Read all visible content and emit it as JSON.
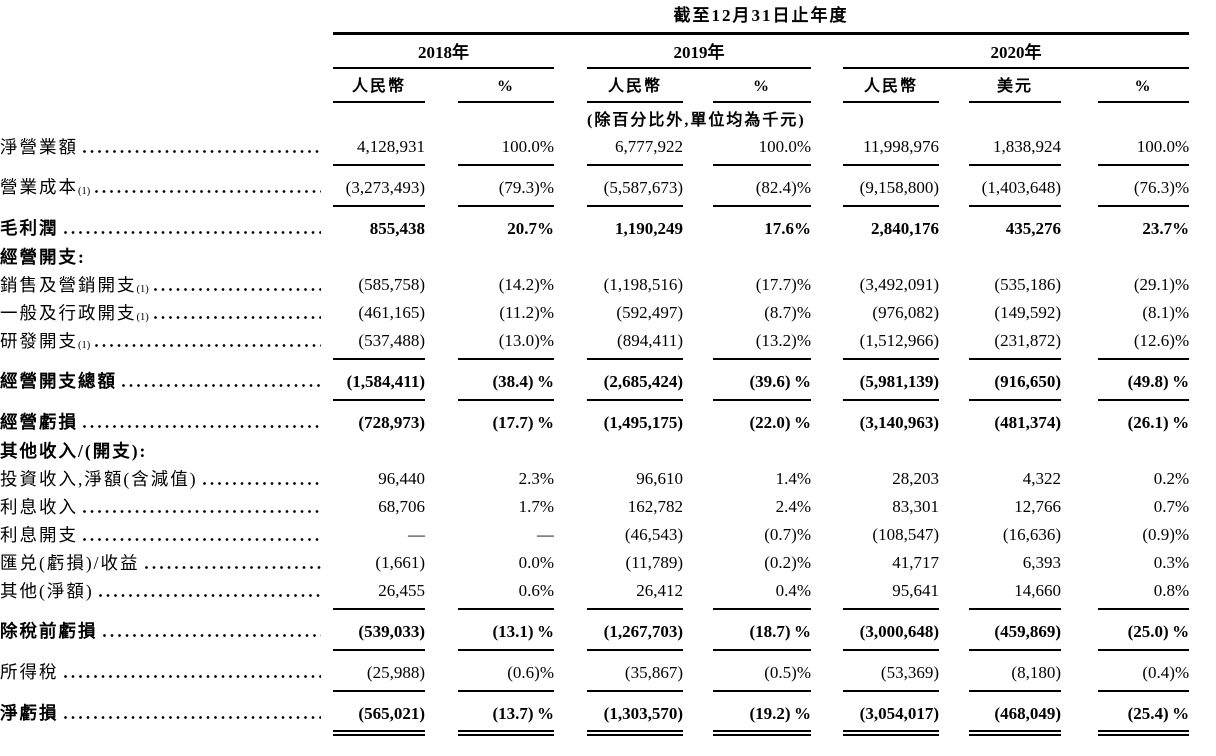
{
  "table": {
    "title": "截至12月31日止年度",
    "unit_note": "(除百分比外,單位均為千元)",
    "year_groups": [
      {
        "label": "2018年",
        "columns": [
          "人民幣",
          "%"
        ]
      },
      {
        "label": "2019年",
        "columns": [
          "人民幣",
          "%"
        ]
      },
      {
        "label": "2020年",
        "columns": [
          "人民幣",
          "美元",
          "%"
        ]
      }
    ],
    "rows": [
      {
        "label": "淨營業額",
        "sup": "",
        "bold": false,
        "leader": true,
        "rule": "single",
        "gap_above": false,
        "values": [
          "4,128,931",
          "100.0%",
          "6,777,922",
          "100.0%",
          "11,998,976",
          "1,838,924",
          "100.0%"
        ]
      },
      {
        "label": "營業成本",
        "sup": "(1)",
        "bold": false,
        "leader": true,
        "rule": "single",
        "gap_above": true,
        "values": [
          "(3,273,493)",
          "(79.3)%",
          "(5,587,673)",
          "(82.4)%",
          "(9,158,800)",
          "(1,403,648)",
          "(76.3)%"
        ]
      },
      {
        "label": "毛利潤",
        "sup": "",
        "bold": true,
        "leader": true,
        "rule": "none",
        "gap_above": true,
        "values": [
          "855,438",
          "20.7%",
          "1,190,249",
          "17.6%",
          "2,840,176",
          "435,276",
          "23.7%"
        ]
      },
      {
        "label": "經營開支:",
        "sup": "",
        "bold": true,
        "leader": false,
        "rule": "none",
        "gap_above": false,
        "values": [
          "",
          "",
          "",
          "",
          "",
          "",
          ""
        ]
      },
      {
        "label": "銷售及營銷開支",
        "sup": "(1)",
        "bold": false,
        "leader": true,
        "rule": "none",
        "gap_above": false,
        "values": [
          "(585,758)",
          "(14.2)%",
          "(1,198,516)",
          "(17.7)%",
          "(3,492,091)",
          "(535,186)",
          "(29.1)%"
        ]
      },
      {
        "label": "一般及行政開支",
        "sup": "(1)",
        "bold": false,
        "leader": true,
        "rule": "none",
        "gap_above": false,
        "values": [
          "(461,165)",
          "(11.2)%",
          "(592,497)",
          "(8.7)%",
          "(976,082)",
          "(149,592)",
          "(8.1)%"
        ]
      },
      {
        "label": "研發開支",
        "sup": "(1)",
        "bold": false,
        "leader": true,
        "rule": "single",
        "gap_above": false,
        "values": [
          "(537,488)",
          "(13.0)%",
          "(894,411)",
          "(13.2)%",
          "(1,512,966)",
          "(231,872)",
          "(12.6)%"
        ]
      },
      {
        "label": "經營開支總額",
        "sup": "",
        "bold": true,
        "leader": true,
        "rule": "single",
        "gap_above": true,
        "values": [
          "(1,584,411)",
          "(38.4) %",
          "(2,685,424)",
          "(39.6) %",
          "(5,981,139)",
          "(916,650)",
          "(49.8) %"
        ]
      },
      {
        "label": "經營虧損",
        "sup": "",
        "bold": true,
        "leader": true,
        "rule": "none",
        "gap_above": true,
        "values": [
          "(728,973)",
          "(17.7) %",
          "(1,495,175)",
          "(22.0) %",
          "(3,140,963)",
          "(481,374)",
          "(26.1) %"
        ]
      },
      {
        "label": "其他收入/(開支):",
        "sup": "",
        "bold": true,
        "leader": false,
        "rule": "none",
        "gap_above": false,
        "values": [
          "",
          "",
          "",
          "",
          "",
          "",
          ""
        ]
      },
      {
        "label": "投資收入,淨額(含減值)",
        "sup": "",
        "bold": false,
        "leader": true,
        "rule": "none",
        "gap_above": false,
        "values": [
          "96,440",
          "2.3%",
          "96,610",
          "1.4%",
          "28,203",
          "4,322",
          "0.2%"
        ]
      },
      {
        "label": "利息收入",
        "sup": "",
        "bold": false,
        "leader": true,
        "rule": "none",
        "gap_above": false,
        "values": [
          "68,706",
          "1.7%",
          "162,782",
          "2.4%",
          "83,301",
          "12,766",
          "0.7%"
        ]
      },
      {
        "label": "利息開支",
        "sup": "",
        "bold": false,
        "leader": true,
        "rule": "none",
        "gap_above": false,
        "values": [
          "—",
          "—",
          "(46,543)",
          "(0.7)%",
          "(108,547)",
          "(16,636)",
          "(0.9)%"
        ]
      },
      {
        "label": "匯兑(虧損)/收益",
        "sup": "",
        "bold": false,
        "leader": true,
        "rule": "none",
        "gap_above": false,
        "values": [
          "(1,661)",
          "0.0%",
          "(11,789)",
          "(0.2)%",
          "41,717",
          "6,393",
          "0.3%"
        ]
      },
      {
        "label": "其他(淨額)",
        "sup": "",
        "bold": false,
        "leader": true,
        "rule": "single",
        "gap_above": false,
        "values": [
          "26,455",
          "0.6%",
          "26,412",
          "0.4%",
          "95,641",
          "14,660",
          "0.8%"
        ]
      },
      {
        "label": "除稅前虧損",
        "sup": "",
        "bold": true,
        "leader": true,
        "rule": "single",
        "gap_above": true,
        "values": [
          "(539,033)",
          "(13.1) %",
          "(1,267,703)",
          "(18.7) %",
          "(3,000,648)",
          "(459,869)",
          "(25.0) %"
        ]
      },
      {
        "label": "所得稅",
        "sup": "",
        "bold": false,
        "leader": true,
        "rule": "single",
        "gap_above": true,
        "values": [
          "(25,988)",
          "(0.6)%",
          "(35,867)",
          "(0.5)%",
          "(53,369)",
          "(8,180)",
          "(0.4)%"
        ]
      },
      {
        "label": "淨虧損",
        "sup": "",
        "bold": true,
        "leader": true,
        "rule": "double",
        "gap_above": true,
        "values": [
          "(565,021)",
          "(13.7) %",
          "(1,303,570)",
          "(19.2) %",
          "(3,054,017)",
          "(468,049)",
          "(25.4) %"
        ]
      }
    ]
  }
}
